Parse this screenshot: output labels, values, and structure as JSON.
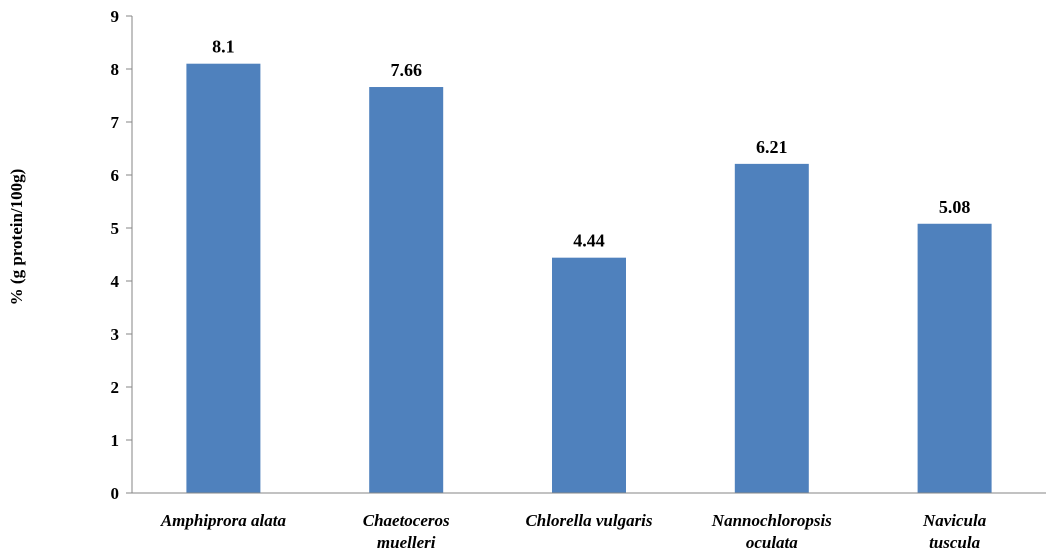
{
  "chart_data": {
    "type": "bar",
    "title": "",
    "xlabel": "",
    "ylabel": "% (g protein/100g)",
    "categories": [
      [
        "Amphiprora alata"
      ],
      [
        "Chaetoceros",
        "muelleri"
      ],
      [
        "Chlorella vulgaris"
      ],
      [
        "Nannochloropsis",
        "oculata"
      ],
      [
        "Navicula",
        "tuscula"
      ]
    ],
    "values": [
      8.1,
      7.66,
      4.44,
      6.21,
      5.08
    ],
    "data_labels": [
      "8.1",
      "7.66",
      "4.44",
      "6.21",
      "5.08"
    ],
    "ylim": [
      0,
      9
    ],
    "yticks": [
      0,
      1,
      2,
      3,
      4,
      5,
      6,
      7,
      8,
      9
    ],
    "grid": false,
    "legend": "none",
    "bar_color": "#4F81BD",
    "axis_color": "#868686"
  }
}
